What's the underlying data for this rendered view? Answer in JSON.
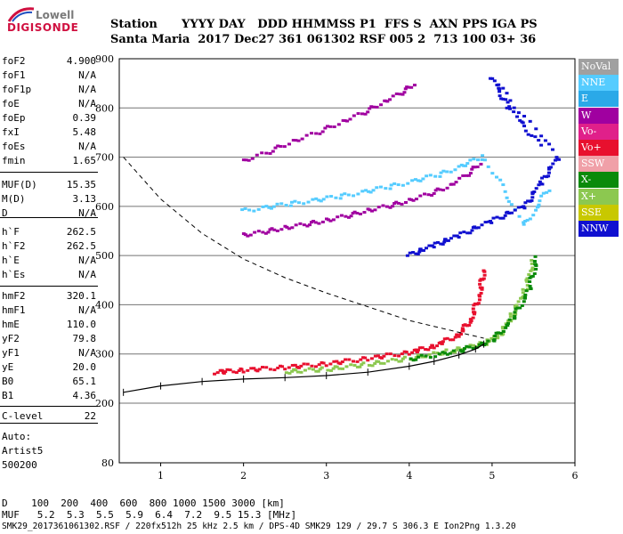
{
  "logo": {
    "top": "Lowell",
    "bottom": "DIGISONDE"
  },
  "header": {
    "line1": "Station      YYYY DAY   DDD HHMMSS P1  FFS S  AXN PPS IGA PS",
    "line2": "Santa Maria  2017 Dec27 361 061302 RSF 005 2  713 100 03+ 36"
  },
  "params": [
    {
      "name": "foF2",
      "value": "4.900"
    },
    {
      "name": "foF1",
      "value": "N/A"
    },
    {
      "name": "foF1p",
      "value": "N/A"
    },
    {
      "name": "foE",
      "value": "N/A"
    },
    {
      "name": "foEp",
      "value": "0.39"
    },
    {
      "name": "fxI",
      "value": "5.48"
    },
    {
      "name": "foEs",
      "value": "N/A"
    },
    {
      "name": "fmin",
      "value": "1.65"
    },
    {
      "name": "MUF(D)",
      "value": "15.35"
    },
    {
      "name": "M(D)",
      "value": "3.13"
    },
    {
      "name": "D",
      "value": "N/A"
    },
    {
      "name": "h`F",
      "value": "262.5"
    },
    {
      "name": "h`F2",
      "value": "262.5"
    },
    {
      "name": "h`E",
      "value": "N/A"
    },
    {
      "name": "h`Es",
      "value": "N/A"
    },
    {
      "name": "hmF2",
      "value": "320.1"
    },
    {
      "name": "hmF1",
      "value": "N/A"
    },
    {
      "name": "hmE",
      "value": "110.0"
    },
    {
      "name": "yF2",
      "value": "79.8"
    },
    {
      "name": "yF1",
      "value": "N/A"
    },
    {
      "name": "yE",
      "value": "20.0"
    },
    {
      "name": "B0",
      "value": "65.1"
    },
    {
      "name": "B1",
      "value": "4.36"
    },
    {
      "name": "C-level",
      "value": "22"
    }
  ],
  "auto": {
    "line1": "Auto:",
    "line2": "Artist5",
    "line3": "500200"
  },
  "legend": [
    {
      "label": "NoVal",
      "color": "#a0a0a0"
    },
    {
      "label": "NNE",
      "color": "#55ccff"
    },
    {
      "label": "E",
      "color": "#2aa9e8"
    },
    {
      "label": "W",
      "color": "#a000a0"
    },
    {
      "label": "Vo-",
      "color": "#e0208a"
    },
    {
      "label": "Vo+",
      "color": "#e8102e"
    },
    {
      "label": "SSW",
      "color": "#f0a0a8"
    },
    {
      "label": "X-",
      "color": "#0a8a0a"
    },
    {
      "label": "X+",
      "color": "#8cc850"
    },
    {
      "label": "SSE",
      "color": "#c8c800"
    },
    {
      "label": "NNW",
      "color": "#1010d0"
    }
  ],
  "footer": {
    "line1": "D    100  200  400  600  800 1000 1500 3000 [km]",
    "line2": "MUF   5.2  5.3  5.5  5.9  6.4  7.2  9.5 15.3 [MHz]",
    "line3": "SMK29_2017361061302.RSF / 220fx512h 25 kHz 2.5 km / DPS-4D SMK29 129 / 29.7 S 306.3 E Ion2Png 1.3.20"
  },
  "chart_data": {
    "type": "scatter",
    "xlabel": "",
    "ylabel": "",
    "xlim": [
      0.5,
      6.0
    ],
    "ylim": [
      80,
      900
    ],
    "x_ticks": [
      1,
      2,
      3,
      4,
      5,
      6
    ],
    "y_ticks": [
      80,
      200,
      300,
      400,
      500,
      600,
      700,
      800,
      900
    ],
    "series": [
      {
        "name": "Vo+",
        "color": "#e8102e",
        "points": [
          [
            1.65,
            262
          ],
          [
            2.0,
            266
          ],
          [
            2.5,
            272
          ],
          [
            3.0,
            279
          ],
          [
            3.5,
            290
          ],
          [
            4.0,
            302
          ],
          [
            4.3,
            315
          ],
          [
            4.6,
            338
          ],
          [
            4.75,
            370
          ],
          [
            4.85,
            420
          ],
          [
            4.9,
            470
          ]
        ]
      },
      {
        "name": "X+",
        "color": "#8cc850",
        "points": [
          [
            2.5,
            263
          ],
          [
            3.0,
            268
          ],
          [
            3.5,
            278
          ],
          [
            4.0,
            290
          ],
          [
            4.5,
            305
          ],
          [
            4.9,
            320
          ],
          [
            5.1,
            340
          ],
          [
            5.25,
            380
          ],
          [
            5.4,
            430
          ],
          [
            5.5,
            490
          ]
        ]
      },
      {
        "name": "X-",
        "color": "#0a8a0a",
        "points": [
          [
            4.0,
            288
          ],
          [
            4.6,
            305
          ],
          [
            5.0,
            325
          ],
          [
            5.25,
            370
          ],
          [
            5.45,
            430
          ],
          [
            5.55,
            500
          ]
        ]
      },
      {
        "name": "W",
        "color": "#a000a0",
        "points": [
          [
            2.0,
            540
          ],
          [
            2.5,
            555
          ],
          [
            3.0,
            570
          ],
          [
            3.5,
            590
          ],
          [
            4.0,
            610
          ],
          [
            4.5,
            640
          ],
          [
            4.9,
            690
          ],
          [
            2.0,
            690
          ],
          [
            2.6,
            730
          ],
          [
            3.2,
            770
          ],
          [
            3.7,
            810
          ],
          [
            4.1,
            850
          ]
        ]
      },
      {
        "name": "NNE",
        "color": "#55ccff",
        "points": [
          [
            2.0,
            590
          ],
          [
            2.6,
            605
          ],
          [
            3.2,
            620
          ],
          [
            3.8,
            640
          ],
          [
            4.4,
            665
          ],
          [
            4.9,
            700
          ],
          [
            5.4,
            560
          ],
          [
            5.7,
            640
          ]
        ]
      },
      {
        "name": "NNW",
        "color": "#1010d0",
        "points": [
          [
            4.0,
            500
          ],
          [
            4.3,
            520
          ],
          [
            4.6,
            540
          ],
          [
            5.0,
            570
          ],
          [
            5.4,
            600
          ],
          [
            5.6,
            650
          ],
          [
            5.8,
            700
          ],
          [
            5.0,
            860
          ],
          [
            5.2,
            800
          ],
          [
            5.6,
            720
          ]
        ]
      }
    ],
    "profile": {
      "name": "profile",
      "color": "#000000",
      "points": [
        [
          0.55,
          222
        ],
        [
          1.0,
          235
        ],
        [
          1.5,
          244
        ],
        [
          2.0,
          249
        ],
        [
          2.5,
          252
        ],
        [
          3.0,
          256
        ],
        [
          3.5,
          263
        ],
        [
          4.0,
          275
        ],
        [
          4.3,
          285
        ],
        [
          4.6,
          298
        ],
        [
          4.8,
          310
        ],
        [
          4.9,
          320
        ]
      ]
    },
    "dashed": {
      "name": "dashed",
      "color": "#000000",
      "points": [
        [
          0.55,
          700
        ],
        [
          1.0,
          615
        ],
        [
          1.5,
          545
        ],
        [
          2.0,
          493
        ],
        [
          2.5,
          455
        ],
        [
          3.0,
          424
        ],
        [
          3.5,
          396
        ],
        [
          4.0,
          368
        ],
        [
          4.5,
          348
        ],
        [
          4.9,
          332
        ]
      ]
    }
  }
}
